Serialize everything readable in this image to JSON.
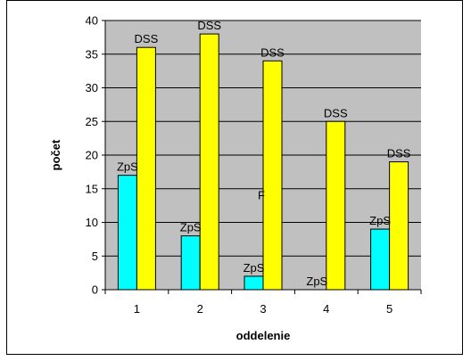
{
  "chart_data": {
    "type": "bar",
    "xlabel": "oddelenie",
    "ylabel": "počet",
    "categories": [
      "1",
      "2",
      "3",
      "4",
      "5"
    ],
    "ylim": [
      0,
      40
    ],
    "yticks": [
      0,
      5,
      10,
      15,
      20,
      25,
      30,
      35,
      40
    ],
    "grid": true,
    "legend": "none",
    "plot_background": "#c0c0c0",
    "series": [
      {
        "name": "ZpS",
        "values": [
          17,
          8,
          2,
          0,
          9
        ],
        "color": "#00ffff"
      },
      {
        "name": "DSS",
        "values": [
          36,
          38,
          34,
          25,
          19
        ],
        "color": "#ffff00"
      }
    ],
    "annotations": [
      {
        "text": "F",
        "category": "3",
        "y": 14
      }
    ]
  }
}
